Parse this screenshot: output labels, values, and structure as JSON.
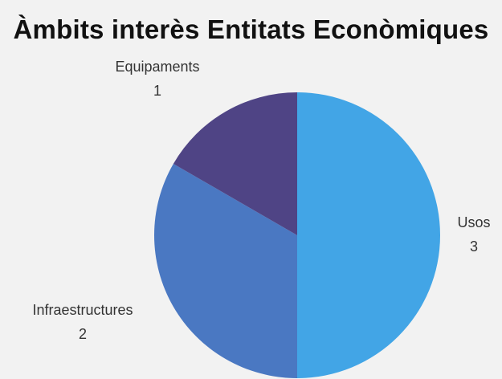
{
  "chart_data": {
    "type": "pie",
    "title": "Àmbits interès Entitats Econòmiques",
    "categories": [
      "Usos",
      "Infraestructures",
      "Equipaments"
    ],
    "values": [
      3,
      2,
      1
    ],
    "colors": [
      "#42a5e6",
      "#4a78c2",
      "#4f4485"
    ],
    "start_angle": "12 o'clock",
    "direction": "clockwise",
    "labels_outside": true,
    "legend": "none"
  }
}
